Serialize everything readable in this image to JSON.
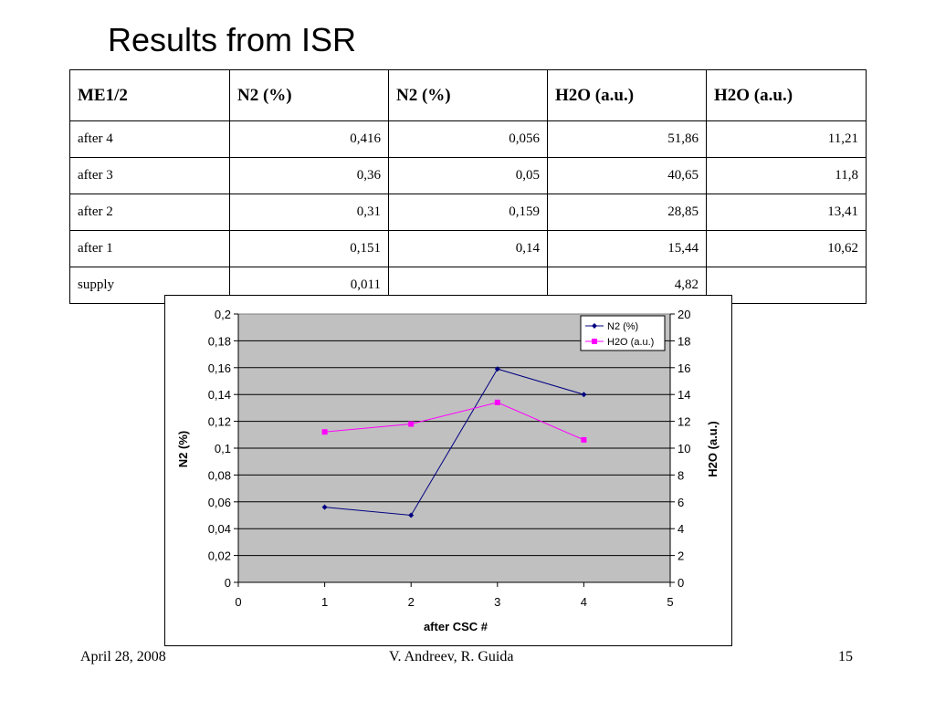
{
  "slide": {
    "title": "Results from ISR",
    "footer_date": "April 28, 2008",
    "footer_authors": "V. Andreev, R. Guida",
    "page_number": "15"
  },
  "table": {
    "headers": [
      "ME1/2",
      "N2 (%)",
      "N2 (%)",
      "H2O (a.u.)",
      "H2O (a.u.)"
    ],
    "rows": [
      [
        "after 4",
        "0,416",
        "0,056",
        "51,86",
        "11,21"
      ],
      [
        "after 3",
        "0,36",
        "0,05",
        "40,65",
        "11,8"
      ],
      [
        "after 2",
        "0,31",
        "0,159",
        "28,85",
        "13,41"
      ],
      [
        "after 1",
        "0,151",
        "0,14",
        "15,44",
        "10,62"
      ],
      [
        "supply",
        "0,011",
        "",
        "4,82",
        ""
      ]
    ]
  },
  "chart_data": {
    "type": "line",
    "xlabel": "after CSC #",
    "ylabel": "N2 (%)",
    "y2label": "H2O (a.u.)",
    "xlim": [
      0,
      5
    ],
    "ylim": [
      0,
      0.2
    ],
    "y2lim": [
      0,
      20
    ],
    "x_ticks": [
      "0",
      "1",
      "2",
      "3",
      "4",
      "5"
    ],
    "y_ticks": [
      "0",
      "0,02",
      "0,04",
      "0,06",
      "0,08",
      "0,1",
      "0,12",
      "0,14",
      "0,16",
      "0,18",
      "0,2"
    ],
    "y2_ticks": [
      "0",
      "2",
      "4",
      "6",
      "8",
      "10",
      "12",
      "14",
      "16",
      "18",
      "20"
    ],
    "grid": true,
    "legend_position": "top-right",
    "plot_background": "#c0c0c0",
    "series": [
      {
        "name": "N2 (%)",
        "axis": "left",
        "color": "#000080",
        "marker": "diamond",
        "x": [
          1,
          2,
          3,
          4
        ],
        "y": [
          0.056,
          0.05,
          0.159,
          0.14
        ]
      },
      {
        "name": "H2O (a.u.)",
        "axis": "right",
        "color": "#ff00ff",
        "marker": "square",
        "x": [
          1,
          2,
          3,
          4
        ],
        "y": [
          11.21,
          11.8,
          13.41,
          10.62
        ]
      }
    ]
  }
}
